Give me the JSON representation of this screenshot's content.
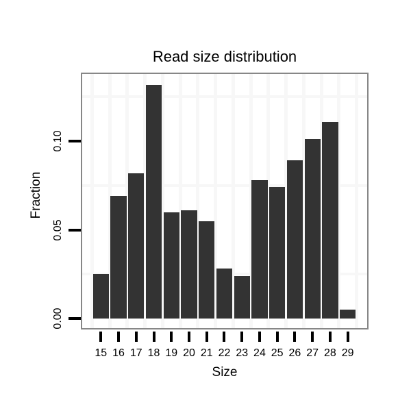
{
  "title": "Read size distribution",
  "chart_data": {
    "type": "bar",
    "title": "Read size distribution",
    "xlabel": "Size",
    "ylabel": "Fraction",
    "categories": [
      "15",
      "16",
      "17",
      "18",
      "19",
      "20",
      "21",
      "22",
      "23",
      "24",
      "25",
      "26",
      "27",
      "28",
      "29"
    ],
    "values": [
      0.025,
      0.069,
      0.082,
      0.1315,
      0.06,
      0.061,
      0.055,
      0.028,
      0.024,
      0.078,
      0.074,
      0.089,
      0.101,
      0.111,
      0.005
    ],
    "yticks": [
      0.0,
      0.05,
      0.1
    ],
    "ytick_labels": [
      "0.00",
      "0.05",
      "0.10"
    ],
    "ylim": [
      -0.0065,
      0.1385
    ],
    "grid": "minor-only",
    "minor_gridlines_y": [
      0.025,
      0.075,
      0.125
    ],
    "legend": "none",
    "colors": {
      "bar": "#333333",
      "panel_border": "#878787",
      "grid": "#f7f7f7",
      "tick": "#000000",
      "text": "#000000",
      "panel_background": "#ffffff",
      "background": "#ffffff"
    }
  }
}
